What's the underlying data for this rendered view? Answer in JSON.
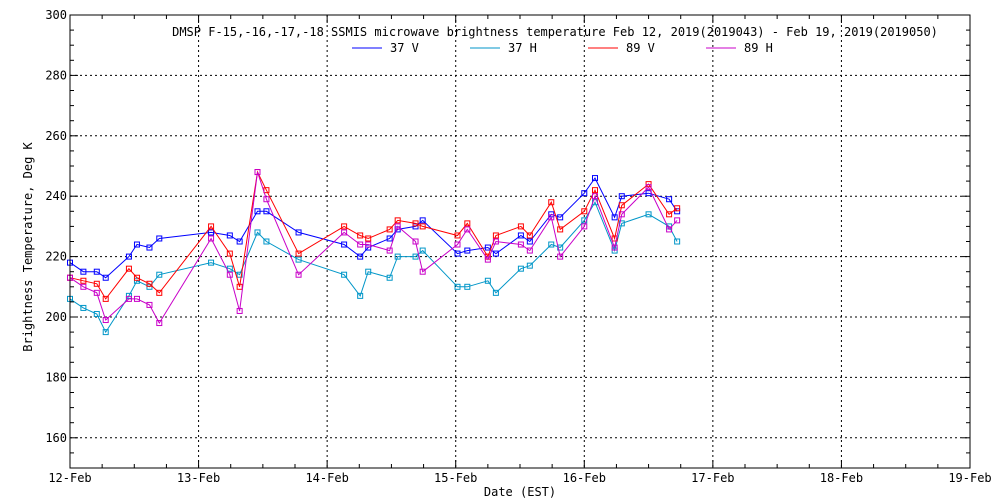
{
  "chart_data": {
    "type": "line",
    "title": "DMSP F-15,-16,-17,-18 SSMIS microwave brightness temperature Feb 12, 2019(2019043) - Feb 19, 2019(2019050)",
    "xlabel": "Date (EST)",
    "ylabel": "Brightness Temperature, Deg K",
    "xlim": [
      "2019-02-12T00:00",
      "2019-02-19T00:00"
    ],
    "ylim": [
      150,
      300
    ],
    "x_ticks": [
      "12-Feb",
      "13-Feb",
      "14-Feb",
      "15-Feb",
      "16-Feb",
      "17-Feb",
      "18-Feb",
      "19-Feb"
    ],
    "y_ticks": [
      160,
      180,
      200,
      220,
      240,
      260,
      280,
      300
    ],
    "grid": true,
    "legend_position": "top-center",
    "series": [
      {
        "name": "37 V",
        "color": "#0000ff",
        "points": [
          [
            "2019-02-12T00:00",
            218
          ],
          [
            "2019-02-12T02:30",
            215
          ],
          [
            "2019-02-12T05:00",
            215
          ],
          [
            "2019-02-12T06:40",
            213
          ],
          [
            "2019-02-12T11:00",
            220
          ],
          [
            "2019-02-12T12:30",
            224
          ],
          [
            "2019-02-12T14:50",
            223
          ],
          [
            "2019-02-12T16:40",
            226
          ],
          [
            "2019-02-13T02:20",
            228
          ],
          [
            "2019-02-13T05:50",
            227
          ],
          [
            "2019-02-13T07:40",
            225
          ],
          [
            "2019-02-13T11:00",
            235
          ],
          [
            "2019-02-13T12:40",
            235
          ],
          [
            "2019-02-13T18:40",
            228
          ],
          [
            "2019-02-14T03:10",
            224
          ],
          [
            "2019-02-14T06:10",
            220
          ],
          [
            "2019-02-14T07:40",
            223
          ],
          [
            "2019-02-14T11:40",
            226
          ],
          [
            "2019-02-14T13:10",
            229
          ],
          [
            "2019-02-14T16:30",
            230
          ],
          [
            "2019-02-14T17:50",
            232
          ],
          [
            "2019-02-15T00:20",
            221
          ],
          [
            "2019-02-15T02:10",
            222
          ],
          [
            "2019-02-15T06:00",
            223
          ],
          [
            "2019-02-15T07:30",
            221
          ],
          [
            "2019-02-15T12:10",
            227
          ],
          [
            "2019-02-15T13:50",
            225
          ],
          [
            "2019-02-15T17:50",
            234
          ],
          [
            "2019-02-15T19:30",
            233
          ],
          [
            "2019-02-16T00:00",
            241
          ],
          [
            "2019-02-16T02:00",
            246
          ],
          [
            "2019-02-16T05:40",
            233
          ],
          [
            "2019-02-16T07:00",
            240
          ],
          [
            "2019-02-16T12:00",
            241
          ],
          [
            "2019-02-16T15:50",
            239
          ],
          [
            "2019-02-16T17:20",
            235
          ]
        ]
      },
      {
        "name": "37 H",
        "color": "#0096c8",
        "points": [
          [
            "2019-02-12T00:00",
            206
          ],
          [
            "2019-02-12T02:30",
            203
          ],
          [
            "2019-02-12T05:00",
            201
          ],
          [
            "2019-02-12T06:40",
            195
          ],
          [
            "2019-02-12T11:00",
            207
          ],
          [
            "2019-02-12T12:30",
            212
          ],
          [
            "2019-02-12T14:50",
            210
          ],
          [
            "2019-02-12T16:40",
            214
          ],
          [
            "2019-02-13T02:20",
            218
          ],
          [
            "2019-02-13T05:50",
            216
          ],
          [
            "2019-02-13T07:40",
            214
          ],
          [
            "2019-02-13T11:00",
            228
          ],
          [
            "2019-02-13T12:40",
            225
          ],
          [
            "2019-02-13T18:40",
            219
          ],
          [
            "2019-02-14T03:10",
            214
          ],
          [
            "2019-02-14T06:10",
            207
          ],
          [
            "2019-02-14T07:40",
            215
          ],
          [
            "2019-02-14T11:40",
            213
          ],
          [
            "2019-02-14T13:10",
            220
          ],
          [
            "2019-02-14T16:30",
            220
          ],
          [
            "2019-02-14T17:50",
            222
          ],
          [
            "2019-02-15T00:20",
            210
          ],
          [
            "2019-02-15T02:10",
            210
          ],
          [
            "2019-02-15T06:00",
            212
          ],
          [
            "2019-02-15T07:30",
            208
          ],
          [
            "2019-02-15T12:10",
            216
          ],
          [
            "2019-02-15T13:50",
            217
          ],
          [
            "2019-02-15T17:50",
            224
          ],
          [
            "2019-02-15T19:30",
            223
          ],
          [
            "2019-02-16T00:00",
            232
          ],
          [
            "2019-02-16T02:00",
            238
          ],
          [
            "2019-02-16T05:40",
            222
          ],
          [
            "2019-02-16T07:00",
            231
          ],
          [
            "2019-02-16T12:00",
            234
          ],
          [
            "2019-02-16T15:50",
            230
          ],
          [
            "2019-02-16T17:20",
            225
          ]
        ]
      },
      {
        "name": "89 V",
        "color": "#ff0000",
        "points": [
          [
            "2019-02-12T00:00",
            213
          ],
          [
            "2019-02-12T02:30",
            212
          ],
          [
            "2019-02-12T05:00",
            211
          ],
          [
            "2019-02-12T06:40",
            206
          ],
          [
            "2019-02-12T11:00",
            216
          ],
          [
            "2019-02-12T12:30",
            213
          ],
          [
            "2019-02-12T14:50",
            211
          ],
          [
            "2019-02-12T16:40",
            208
          ],
          [
            "2019-02-13T02:20",
            230
          ],
          [
            "2019-02-13T05:50",
            221
          ],
          [
            "2019-02-13T07:40",
            210
          ],
          [
            "2019-02-13T11:00",
            248
          ],
          [
            "2019-02-13T12:40",
            242
          ],
          [
            "2019-02-13T18:40",
            221
          ],
          [
            "2019-02-14T03:10",
            230
          ],
          [
            "2019-02-14T06:10",
            227
          ],
          [
            "2019-02-14T07:40",
            226
          ],
          [
            "2019-02-14T11:40",
            229
          ],
          [
            "2019-02-14T13:10",
            232
          ],
          [
            "2019-02-14T16:30",
            231
          ],
          [
            "2019-02-14T17:50",
            230
          ],
          [
            "2019-02-15T00:20",
            227
          ],
          [
            "2019-02-15T02:10",
            231
          ],
          [
            "2019-02-15T06:00",
            220
          ],
          [
            "2019-02-15T07:30",
            227
          ],
          [
            "2019-02-15T12:10",
            230
          ],
          [
            "2019-02-15T13:50",
            227
          ],
          [
            "2019-02-15T17:50",
            238
          ],
          [
            "2019-02-15T19:30",
            229
          ],
          [
            "2019-02-16T00:00",
            235
          ],
          [
            "2019-02-16T02:00",
            242
          ],
          [
            "2019-02-16T05:40",
            226
          ],
          [
            "2019-02-16T07:00",
            237
          ],
          [
            "2019-02-16T12:00",
            244
          ],
          [
            "2019-02-16T15:50",
            234
          ],
          [
            "2019-02-16T17:20",
            236
          ]
        ]
      },
      {
        "name": "89 H",
        "color": "#c800c8",
        "points": [
          [
            "2019-02-12T00:00",
            213
          ],
          [
            "2019-02-12T02:30",
            210
          ],
          [
            "2019-02-12T05:00",
            208
          ],
          [
            "2019-02-12T06:40",
            199
          ],
          [
            "2019-02-12T11:00",
            206
          ],
          [
            "2019-02-12T12:30",
            206
          ],
          [
            "2019-02-12T14:50",
            204
          ],
          [
            "2019-02-12T16:40",
            198
          ],
          [
            "2019-02-13T02:20",
            226
          ],
          [
            "2019-02-13T05:50",
            214
          ],
          [
            "2019-02-13T07:40",
            202
          ],
          [
            "2019-02-13T11:00",
            248
          ],
          [
            "2019-02-13T12:40",
            239
          ],
          [
            "2019-02-13T18:40",
            214
          ],
          [
            "2019-02-14T03:10",
            228
          ],
          [
            "2019-02-14T06:10",
            224
          ],
          [
            "2019-02-14T07:40",
            224
          ],
          [
            "2019-02-14T11:40",
            222
          ],
          [
            "2019-02-14T13:10",
            230
          ],
          [
            "2019-02-14T16:30",
            225
          ],
          [
            "2019-02-14T17:50",
            215
          ],
          [
            "2019-02-15T00:20",
            224
          ],
          [
            "2019-02-15T02:10",
            229
          ],
          [
            "2019-02-15T06:00",
            219
          ],
          [
            "2019-02-15T07:30",
            225
          ],
          [
            "2019-02-15T12:10",
            224
          ],
          [
            "2019-02-15T13:50",
            222
          ],
          [
            "2019-02-15T17:50",
            233
          ],
          [
            "2019-02-15T19:30",
            220
          ],
          [
            "2019-02-16T00:00",
            230
          ],
          [
            "2019-02-16T02:00",
            240
          ],
          [
            "2019-02-16T05:40",
            223
          ],
          [
            "2019-02-16T07:00",
            234
          ],
          [
            "2019-02-16T12:00",
            243
          ],
          [
            "2019-02-16T15:50",
            229
          ],
          [
            "2019-02-16T17:20",
            232
          ]
        ]
      }
    ]
  }
}
